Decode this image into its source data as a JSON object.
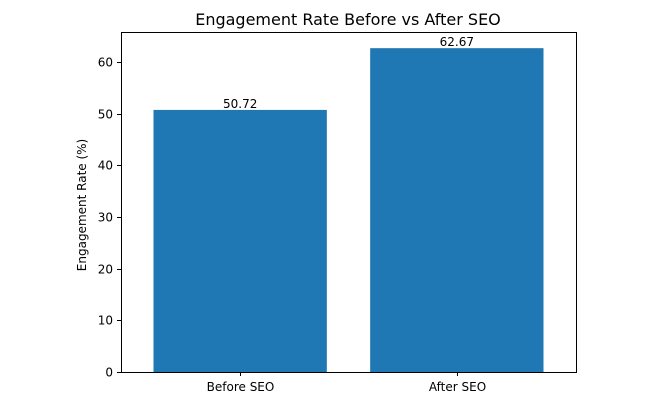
{
  "chart_data": {
    "type": "bar",
    "title": "Engagement Rate Before vs After SEO",
    "xlabel": "",
    "ylabel": "Engagement Rate (%)",
    "categories": [
      "Before SEO",
      "After SEO"
    ],
    "values": [
      50.72,
      62.67
    ],
    "data_labels": [
      "50.72",
      "62.67"
    ],
    "ylim": [
      0,
      65.8
    ],
    "yticks": [
      0,
      10,
      20,
      30,
      40,
      50,
      60
    ],
    "grid": false,
    "bar_color": "#1f77b4"
  }
}
